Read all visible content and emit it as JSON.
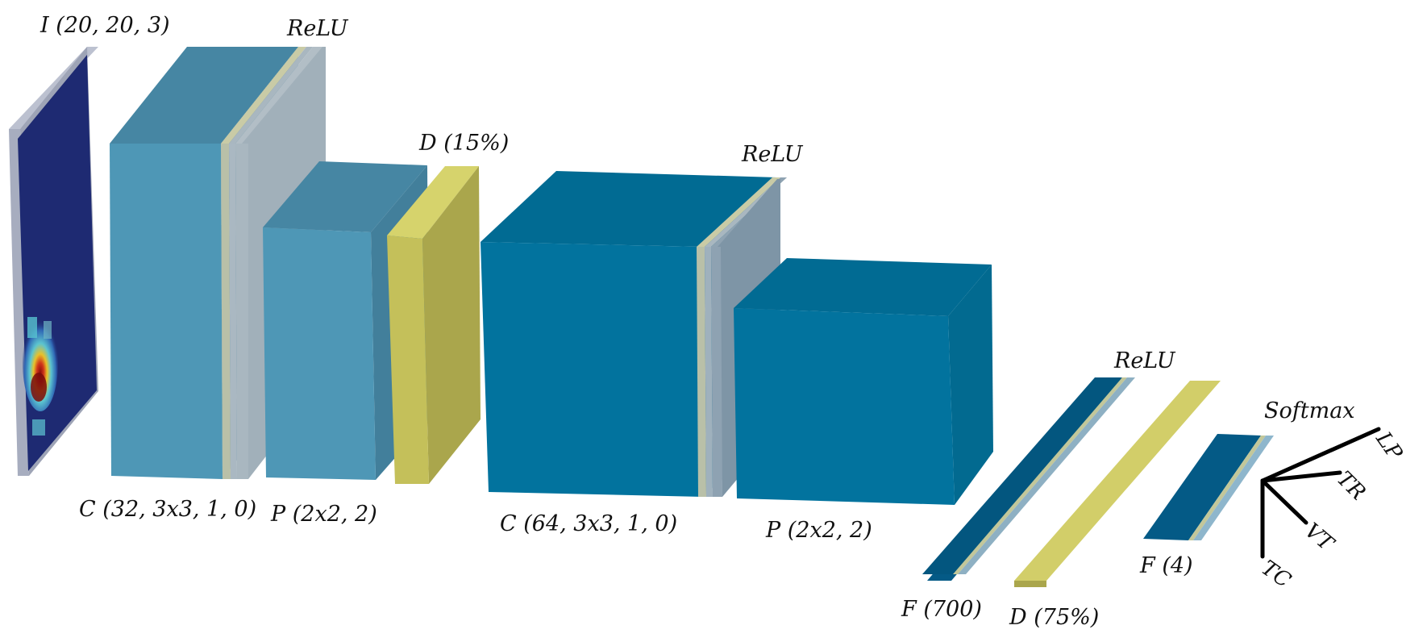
{
  "diagram": {
    "input_label": "I (20, 20, 3)",
    "relu_1": "ReLU",
    "dropout_1": "D (15%)",
    "relu_2": "ReLU",
    "relu_3": "ReLU",
    "softmax": "Softmax",
    "conv_1": "C (32, 3x3, 1, 0)",
    "pool_1": "P (2x2, 2)",
    "conv_2": "C (64, 3x3, 1, 0)",
    "pool_2": "P (2x2, 2)",
    "dense_1": "F (700)",
    "dropout_2": "D (75%)",
    "dense_2": "F (4)",
    "outputs": [
      "LP",
      "TR",
      "VT",
      "TC"
    ]
  },
  "colors": {
    "input_frame": "#a7adbf",
    "input_fill": "#1e2a72",
    "conv1_front": "#4e97b6",
    "conv1_top": "#4686a3",
    "conv1_side": "#427f9b",
    "relu_light": "#a9b7c0",
    "relu_stripe": "#c9cba6",
    "dropout_front": "#c4c05a",
    "dropout_top": "#d6d36c",
    "dropout_side": "#aaa64c",
    "conv2_front": "#02739e",
    "conv2_top": "#016b93",
    "conv2_side": "#026a90",
    "dense_dark": "#045a86",
    "output_lines": "#000000"
  }
}
